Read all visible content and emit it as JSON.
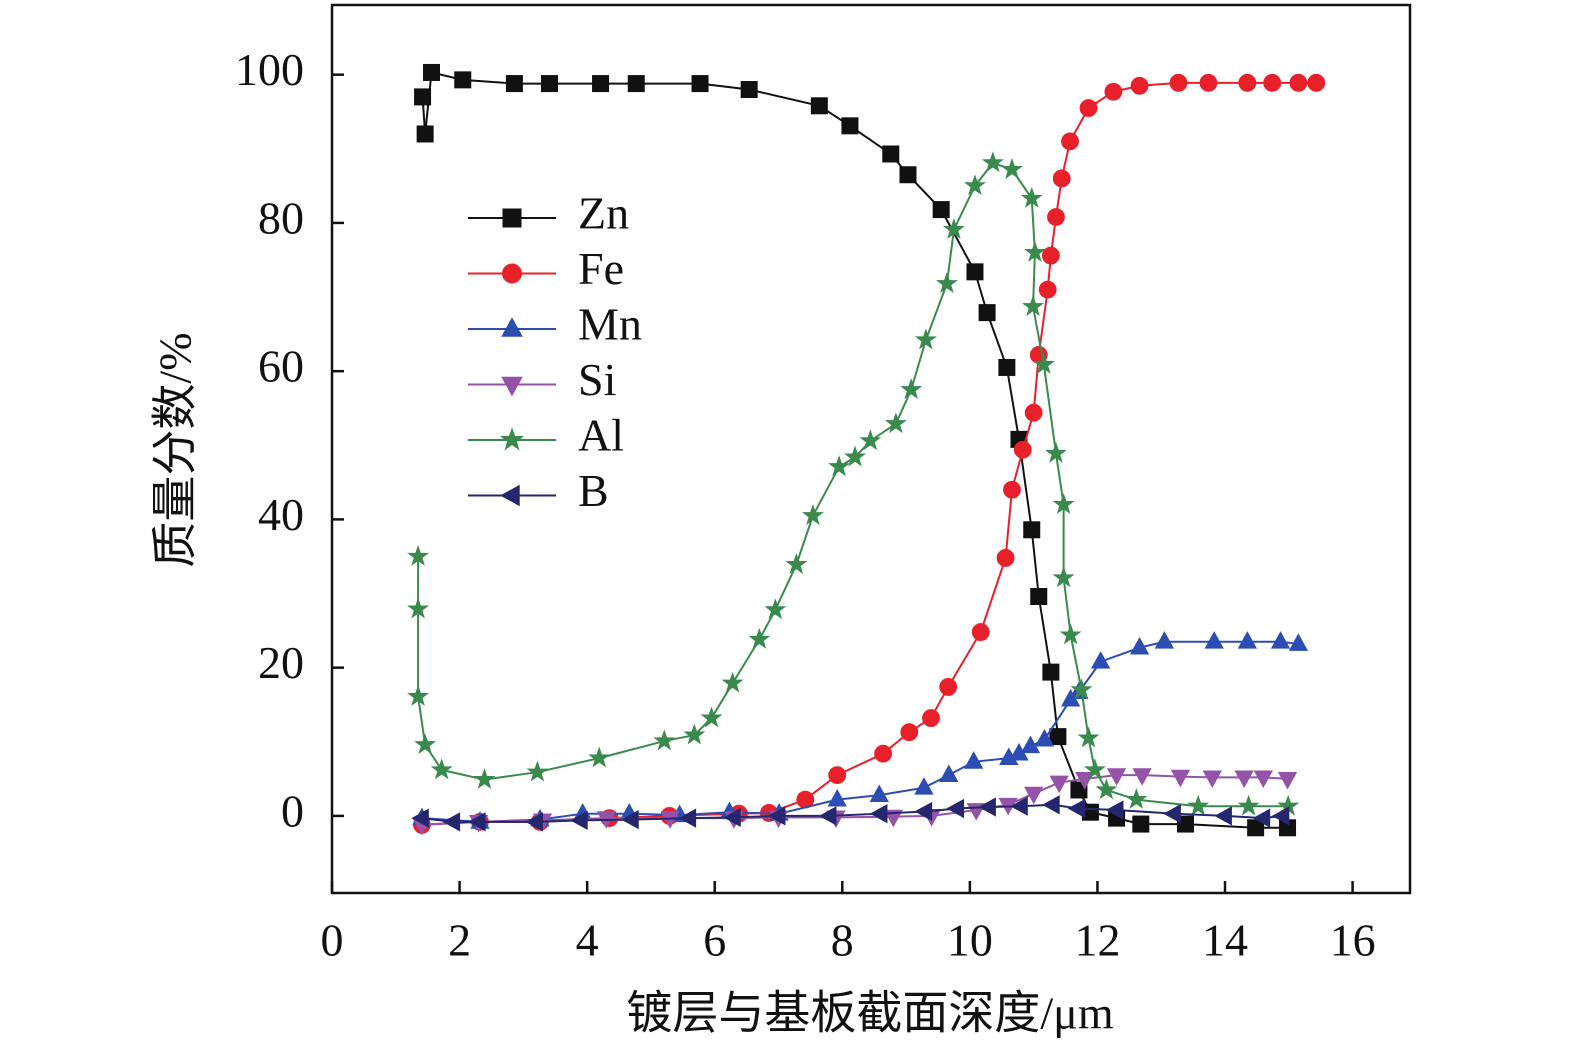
{
  "chart_data": {
    "type": "line",
    "xlabel": "镀层与基板截面深度/μm",
    "ylabel": "质量分数/%",
    "xlim": [
      0,
      16.9
    ],
    "ylim": [
      -10.4,
      109.4
    ],
    "xticks": [
      0,
      2,
      4,
      6,
      8,
      10,
      12,
      14,
      16
    ],
    "yticks": [
      0,
      20,
      40,
      60,
      80,
      100
    ],
    "legend": "upper-left",
    "series": [
      {
        "name": "Zn",
        "color": "#111111",
        "marker": "square",
        "x": [
          1.42,
          1.46,
          1.56,
          2.05,
          2.86,
          3.41,
          4.21,
          4.77,
          5.77,
          6.54,
          7.64,
          8.12,
          8.76,
          9.03,
          9.55,
          10.08,
          10.27,
          10.58,
          10.77,
          10.97,
          11.08,
          11.27,
          11.38,
          11.71,
          11.89,
          12.3,
          12.68,
          13.38,
          14.48,
          14.98
        ],
        "values": [
          97,
          92,
          100.3,
          99.3,
          98.8,
          98.8,
          98.8,
          98.8,
          98.8,
          98,
          95.8,
          93.1,
          89.3,
          86.5,
          81.8,
          73.4,
          67.9,
          60.5,
          50.8,
          38.6,
          29.6,
          19.4,
          10.7,
          3.5,
          0.5,
          -0.3,
          -1.1,
          -1.1,
          -1.6,
          -1.6
        ]
      },
      {
        "name": "Fe",
        "color": "#e8202a",
        "marker": "circle",
        "x": [
          1.41,
          2.32,
          3.26,
          4.35,
          5.29,
          6.38,
          6.85,
          7.42,
          7.92,
          8.64,
          9.05,
          9.39,
          9.66,
          10.17,
          10.56,
          10.66,
          10.83,
          11.0,
          11.08,
          11.22,
          11.27,
          11.35,
          11.44,
          11.57,
          11.86,
          12.25,
          12.66,
          13.27,
          13.74,
          14.35,
          14.74,
          15.15,
          15.43
        ],
        "values": [
          -1.2,
          -0.8,
          -0.8,
          -0.3,
          0,
          0.3,
          0.4,
          2.2,
          5.5,
          8.4,
          11.3,
          13.2,
          17.4,
          24.8,
          34.8,
          44,
          49.4,
          54.4,
          62.2,
          71,
          75.6,
          80.8,
          86,
          91,
          95.5,
          97.7,
          98.5,
          98.9,
          98.9,
          98.9,
          98.9,
          98.9,
          98.9
        ]
      },
      {
        "name": "Mn",
        "color": "#2c4db4",
        "marker": "triangle-up",
        "x": [
          1.41,
          2.32,
          3.26,
          3.93,
          4.66,
          5.45,
          6.23,
          7.01,
          7.92,
          8.58,
          9.28,
          9.67,
          10.06,
          10.61,
          10.77,
          10.95,
          11.17,
          11.58,
          11.71,
          12.05,
          12.66,
          13.05,
          13.83,
          14.35,
          14.87,
          15.15
        ],
        "values": [
          -0.3,
          -0.8,
          -0.5,
          0.3,
          0.3,
          0.1,
          0.5,
          0.3,
          2.2,
          2.8,
          3.8,
          5.5,
          7.3,
          7.8,
          8.4,
          9.4,
          10.3,
          15.7,
          16.7,
          20.8,
          22.7,
          23.5,
          23.5,
          23.5,
          23.5,
          23.2
        ]
      },
      {
        "name": "Si",
        "color": "#9452a8",
        "marker": "triangle-down",
        "x": [
          1.41,
          2.3,
          3.3,
          4.3,
          5.3,
          6.3,
          7.0,
          7.9,
          8.8,
          9.4,
          10.1,
          10.6,
          11.0,
          11.4,
          11.8,
          12.3,
          12.7,
          13.3,
          13.8,
          14.3,
          14.6,
          14.98
        ],
        "values": [
          -1.2,
          -0.8,
          -0.6,
          -0.3,
          -0.3,
          -0.3,
          -0.2,
          -0.2,
          -0.1,
          0,
          0.8,
          1.5,
          3,
          4.5,
          5,
          5.5,
          5.5,
          5.3,
          5.2,
          5.2,
          5.2,
          5
        ]
      },
      {
        "name": "Al",
        "color": "#3a8a4e",
        "marker": "star",
        "x": [
          1.35,
          1.35,
          1.35,
          1.46,
          1.72,
          2.39,
          3.22,
          4.19,
          5.21,
          5.68,
          5.95,
          6.28,
          6.7,
          6.95,
          7.28,
          7.54,
          7.95,
          8.2,
          8.44,
          8.84,
          9.08,
          9.31,
          9.64,
          9.75,
          10.08,
          10.36,
          10.66,
          10.97,
          11.02,
          10.99,
          11.16,
          11.35,
          11.47,
          11.47,
          11.58,
          11.75,
          11.86,
          11.96,
          12.14,
          12.61,
          13.58,
          14.37,
          14.99
        ],
        "values": [
          35,
          27.9,
          16.1,
          9.6,
          6.2,
          4.9,
          5.9,
          7.8,
          10.1,
          10.9,
          13.2,
          17.9,
          23.8,
          27.8,
          33.9,
          40.5,
          47.1,
          48.4,
          50.6,
          52.9,
          57.5,
          64.2,
          71.8,
          79.1,
          85,
          88.1,
          87.2,
          83.3,
          76,
          68.7,
          60.9,
          48.9,
          42,
          32.1,
          24.4,
          17,
          10.5,
          6.2,
          3.5,
          2.2,
          1.3,
          1.3,
          1.3
        ]
      },
      {
        "name": "B",
        "color": "#25276e",
        "marker": "triangle-left",
        "x": [
          1.41,
          1.9,
          2.3,
          3.2,
          3.9,
          4.7,
          5.6,
          6.3,
          7.0,
          7.8,
          8.6,
          9.3,
          9.8,
          10.3,
          10.8,
          11.3,
          11.7,
          12.3,
          13.2,
          14.0,
          14.6,
          14.9
        ],
        "values": [
          -0.3,
          -0.8,
          -0.8,
          -0.8,
          -0.6,
          -0.5,
          -0.3,
          -0.2,
          0,
          0,
          0.3,
          0.6,
          1,
          1.2,
          1.3,
          1.5,
          1,
          0.8,
          0.3,
          0,
          -0.3,
          0
        ]
      }
    ]
  }
}
